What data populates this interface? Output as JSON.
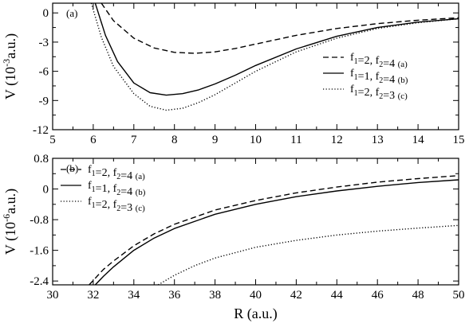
{
  "chart_data": [
    {
      "panel": "(a)",
      "type": "line",
      "ylabel": "V (10^-3 a.u.)",
      "ylabel_parts": {
        "prefix": "V  (10",
        "exp": "-3",
        "suffix": "a.u.)"
      },
      "xlim": [
        5,
        15
      ],
      "ylim": [
        -12,
        1
      ],
      "xticks": [
        5,
        6,
        7,
        8,
        9,
        10,
        11,
        12,
        13,
        14,
        15
      ],
      "yticks": [
        0,
        -3,
        -6,
        -9,
        -12
      ],
      "legend_position": "right",
      "series": [
        {
          "name": "f1=2, f2=4 (a)",
          "legend": {
            "f1": "2",
            "f2": "4",
            "tag": "(a)"
          },
          "style": "dashed",
          "x": [
            6.2,
            6.5,
            7,
            7.5,
            8,
            8.5,
            9,
            9.5,
            10,
            11,
            12,
            13,
            14,
            15
          ],
          "y": [
            1.0,
            -0.8,
            -2.6,
            -3.6,
            -4.05,
            -4.15,
            -4.0,
            -3.65,
            -3.2,
            -2.3,
            -1.6,
            -1.1,
            -0.75,
            -0.5
          ]
        },
        {
          "name": "f1=1, f2=4 (b)",
          "legend": {
            "f1": "1",
            "f2": "4",
            "tag": "(b)"
          },
          "style": "solid",
          "x": [
            6.05,
            6.3,
            6.6,
            7,
            7.4,
            7.8,
            8.2,
            8.6,
            9,
            9.5,
            10,
            11,
            12,
            13,
            14,
            15
          ],
          "y": [
            1.0,
            -2.3,
            -5.0,
            -7.2,
            -8.2,
            -8.45,
            -8.3,
            -7.9,
            -7.3,
            -6.4,
            -5.4,
            -3.7,
            -2.4,
            -1.5,
            -0.95,
            -0.6
          ]
        },
        {
          "name": "f1=2, f2=3 (c)",
          "legend": {
            "f1": "2",
            "f2": "3",
            "tag": "(c)"
          },
          "style": "dotted",
          "x": [
            5.95,
            6.2,
            6.5,
            7,
            7.4,
            7.8,
            8.2,
            8.6,
            9,
            9.5,
            10,
            11,
            12,
            13,
            14,
            15
          ],
          "y": [
            1.0,
            -2.5,
            -5.5,
            -8.3,
            -9.6,
            -10.0,
            -9.8,
            -9.2,
            -8.4,
            -7.2,
            -6.0,
            -4.0,
            -2.6,
            -1.6,
            -1.0,
            -0.6
          ]
        }
      ]
    },
    {
      "panel": "(b)",
      "type": "line",
      "xlabel": "R (a.u.)",
      "ylabel": "V (10^-6 a.u.)",
      "ylabel_parts": {
        "prefix": "V  (10",
        "exp": "-6",
        "suffix": "a.u.)"
      },
      "xlim": [
        30,
        50
      ],
      "ylim": [
        -2.5,
        0.8
      ],
      "xticks": [
        30,
        32,
        34,
        36,
        38,
        40,
        42,
        44,
        46,
        48,
        50
      ],
      "yticks": [
        0.8,
        0,
        -0.8,
        -1.6,
        -2.4
      ],
      "legend_position": "top-left",
      "series": [
        {
          "name": "f1=2, f2=4 (a)",
          "legend": {
            "f1": "2",
            "f2": "4",
            "tag": "(a)"
          },
          "style": "dashed",
          "x": [
            31.8,
            32.5,
            33,
            34,
            35,
            36,
            38,
            40,
            42,
            44,
            46,
            48,
            50
          ],
          "y": [
            -2.5,
            -2.1,
            -1.88,
            -1.48,
            -1.17,
            -0.92,
            -0.55,
            -0.3,
            -0.1,
            0.05,
            0.18,
            0.27,
            0.35
          ]
        },
        {
          "name": "f1=1, f2=4 (b)",
          "legend": {
            "f1": "1",
            "f2": "4",
            "tag": "(b)"
          },
          "style": "solid",
          "x": [
            32.1,
            32.5,
            33,
            34,
            35,
            36,
            38,
            40,
            42,
            44,
            46,
            48,
            50
          ],
          "y": [
            -2.5,
            -2.28,
            -2.03,
            -1.6,
            -1.28,
            -1.03,
            -0.66,
            -0.4,
            -0.2,
            -0.05,
            0.07,
            0.17,
            0.24
          ]
        },
        {
          "name": "f1=2, f2=3 (c)",
          "legend": {
            "f1": "2",
            "f2": "3",
            "tag": "(c)"
          },
          "style": "dotted",
          "x": [
            35.2,
            36,
            37,
            38,
            40,
            42,
            44,
            46,
            48,
            50
          ],
          "y": [
            -2.5,
            -2.25,
            -2.0,
            -1.8,
            -1.52,
            -1.34,
            -1.2,
            -1.1,
            -1.02,
            -0.95
          ]
        }
      ]
    }
  ]
}
